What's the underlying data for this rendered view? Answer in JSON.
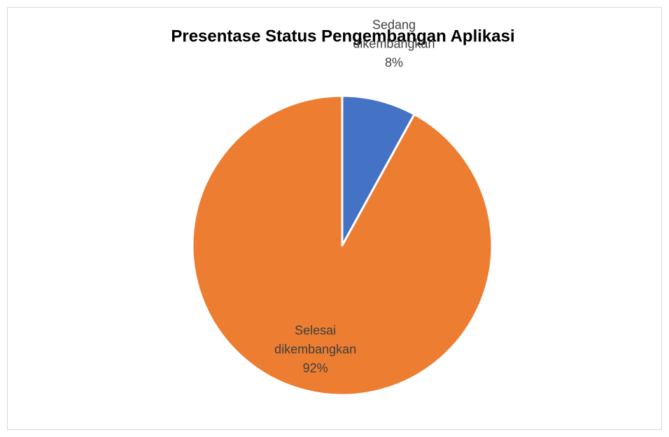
{
  "chart_data": {
    "type": "pie",
    "title": "Presentase Status Pengembangan Aplikasi",
    "categories": [
      "Sedang dikembangkan",
      "Selesai dikembangkan"
    ],
    "values": [
      8,
      92
    ],
    "value_labels": [
      "8%",
      "92%"
    ],
    "colors": [
      "#4472c4",
      "#ed7d31"
    ]
  }
}
